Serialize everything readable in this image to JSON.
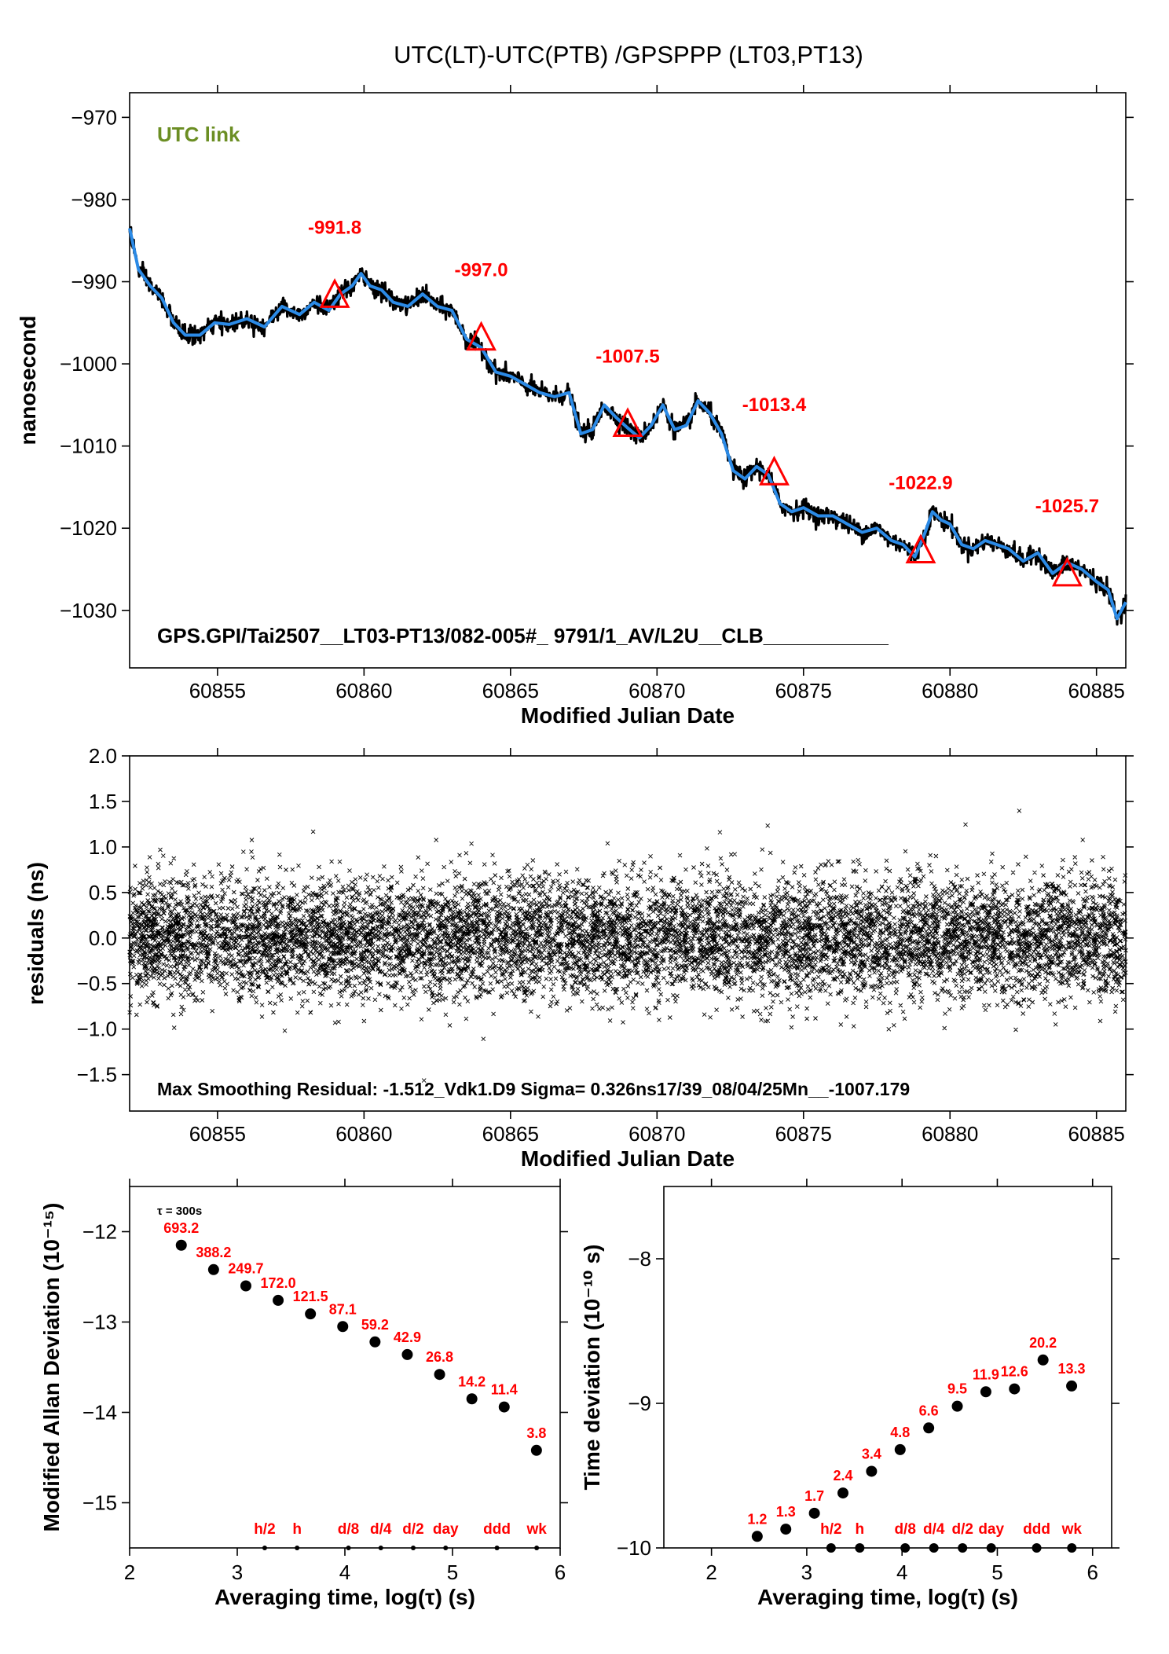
{
  "title": "UTC(LT)-UTC(PTB)  /GPSPPP  (LT03,PT13)",
  "colors": {
    "smooth_line": "#2b8ae6",
    "raw_points": "#000000",
    "annotation": "#ff0000",
    "utc_link": "#6b8e23"
  },
  "chart_data": [
    {
      "id": "top",
      "type": "line",
      "xlabel": "Modified Julian Date",
      "ylabel": "nanosecond",
      "xlim": [
        60852,
        60886
      ],
      "ylim": [
        -1037,
        -967
      ],
      "xticks": [
        60855,
        60860,
        60865,
        60870,
        60875,
        60880,
        60885
      ],
      "yticks": [
        -970,
        -980,
        -990,
        -1000,
        -1010,
        -1020,
        -1030
      ],
      "legend_text": "UTC link",
      "footer_text": "GPS.GPI/Tai2507__LT03-PT13/082-005#_  9791/1_AV/L2U__CLB___________",
      "series": [
        {
          "x": [
            60852,
            60852.3,
            60852.7,
            60853.1,
            60853.5,
            60853.9,
            60854.4,
            60854.9,
            60855.4,
            60856,
            60856.6,
            60857.2,
            60857.8,
            60858.3,
            60858.8,
            60859.2,
            60859.6,
            60859.9,
            60860.2,
            60860.6,
            60861,
            60861.5,
            60862,
            60862.5,
            60863,
            60863.5,
            60864,
            60864.5,
            60865,
            60865.5,
            60866,
            60866.5,
            60867,
            60867.4,
            60867.8,
            60868.2,
            60868.6,
            60869,
            60869.4,
            60869.8,
            60870.2,
            60870.6,
            60871,
            60871.4,
            60871.8,
            60872.2,
            60872.6,
            60873,
            60873.4,
            60873.8,
            60874.2,
            60874.6,
            60875,
            60875.5,
            60876,
            60876.5,
            60877,
            60877.5,
            60878,
            60878.4,
            60878.8,
            60879.1,
            60879.4,
            60879.7,
            60880,
            60880.4,
            60880.8,
            60881.2,
            60881.6,
            60882,
            60882.5,
            60883,
            60883.5,
            60884,
            60884.5,
            60885,
            60885.4,
            60885.7,
            60886
          ],
          "values": [
            -983.5,
            -988.5,
            -990.5,
            -992,
            -995,
            -996.5,
            -996.5,
            -995,
            -995.2,
            -994.5,
            -995.5,
            -993,
            -994,
            -992.5,
            -993.5,
            -991.5,
            -990.5,
            -989,
            -990.5,
            -991,
            -992.5,
            -993,
            -991.5,
            -993,
            -993.5,
            -997,
            -998,
            -1001,
            -1001.5,
            -1002.5,
            -1003.5,
            -1004,
            -1003.5,
            -1008.5,
            -1008,
            -1005,
            -1006.5,
            -1007.8,
            -1009,
            -1007.5,
            -1005,
            -1008,
            -1007.5,
            -1004.5,
            -1006,
            -1008.5,
            -1013,
            -1014,
            -1012.5,
            -1013.5,
            -1017,
            -1018,
            -1017.5,
            -1018.5,
            -1018.5,
            -1019.5,
            -1020.5,
            -1020,
            -1021.5,
            -1022,
            -1023.5,
            -1021,
            -1018,
            -1019,
            -1019.5,
            -1022,
            -1022.5,
            -1021.5,
            -1022,
            -1022.5,
            -1024,
            -1023,
            -1025.5,
            -1024.2,
            -1025,
            -1026.5,
            -1027.5,
            -1031,
            -1029
          ]
        }
      ],
      "annotations": [
        {
          "x": 60859,
          "y": -991.8,
          "label": "-991.8"
        },
        {
          "x": 60864,
          "y": -997.0,
          "label": "-997.0"
        },
        {
          "x": 60869,
          "y": -1007.5,
          "label": "-1007.5"
        },
        {
          "x": 60874,
          "y": -1013.4,
          "label": "-1013.4"
        },
        {
          "x": 60879,
          "y": -1022.9,
          "label": "-1022.9"
        },
        {
          "x": 60884,
          "y": -1025.7,
          "label": "-1025.7"
        }
      ]
    },
    {
      "id": "residuals",
      "type": "scatter",
      "xlabel": "Modified Julian Date",
      "ylabel": "residuals (ns)",
      "xlim": [
        60852,
        60886
      ],
      "ylim": [
        -1.9,
        2.0
      ],
      "xticks": [
        60855,
        60860,
        60865,
        60870,
        60875,
        60880,
        60885
      ],
      "yticks": [
        2.0,
        1.5,
        1.0,
        0.5,
        0.0,
        -0.5,
        -1.0,
        -1.5
      ],
      "ytick_labels": [
        "2.0",
        "1.5",
        "1.0",
        "0.5",
        "0.0",
        "−0.5",
        "−1.0",
        "−1.5"
      ],
      "sigma_ns": 0.326,
      "footer_text": "Max Smoothing Residual: -1.512_Vdk1.D9  Sigma= 0.326ns17/39_08/04/25Mn__-1007.179"
    },
    {
      "id": "mdev",
      "type": "scatter",
      "xlabel": "Averaging time, log(τ) (s)",
      "ylabel": "Modified Allan Deviation (10⁻¹⁵)",
      "xlim": [
        2,
        6
      ],
      "ylim": [
        -15.5,
        -11.5
      ],
      "xticks": [
        2,
        3,
        4,
        5,
        6
      ],
      "yticks": [
        -12,
        -13,
        -14,
        -15
      ],
      "tau_note": "τ = 300s",
      "points": [
        {
          "x": 2.48,
          "y": -12.15,
          "label": "693.2"
        },
        {
          "x": 2.78,
          "y": -12.42,
          "label": "388.2"
        },
        {
          "x": 3.08,
          "y": -12.6,
          "label": "249.7"
        },
        {
          "x": 3.38,
          "y": -12.76,
          "label": "172.0"
        },
        {
          "x": 3.68,
          "y": -12.91,
          "label": "121.5"
        },
        {
          "x": 3.98,
          "y": -13.05,
          "label": "87.1"
        },
        {
          "x": 4.28,
          "y": -13.22,
          "label": "59.2"
        },
        {
          "x": 4.58,
          "y": -13.36,
          "label": "42.9"
        },
        {
          "x": 4.88,
          "y": -13.58,
          "label": "26.8"
        },
        {
          "x": 5.18,
          "y": -13.85,
          "label": "14.2"
        },
        {
          "x": 5.48,
          "y": -13.94,
          "label": "11.4"
        },
        {
          "x": 5.78,
          "y": -14.42,
          "label": "3.8"
        }
      ],
      "markers": [
        {
          "x": 3.255,
          "label": "h/2"
        },
        {
          "x": 3.556,
          "label": "h"
        },
        {
          "x": 4.033,
          "label": "d/8"
        },
        {
          "x": 4.334,
          "label": "d/4"
        },
        {
          "x": 4.635,
          "label": "d/2"
        },
        {
          "x": 4.936,
          "label": "day"
        },
        {
          "x": 5.413,
          "label": "ddd"
        },
        {
          "x": 5.782,
          "label": "wk"
        }
      ]
    },
    {
      "id": "tdev",
      "type": "scatter",
      "xlabel": "Averaging time, log(τ) (s)",
      "ylabel": "Time deviation (10⁻¹⁰ s)",
      "xlim": [
        1.5,
        6.2
      ],
      "ylim": [
        -10,
        -7.5
      ],
      "xticks": [
        2,
        3,
        4,
        5,
        6
      ],
      "yticks": [
        -8,
        -9,
        -10
      ],
      "points": [
        {
          "x": 2.48,
          "y": -9.92,
          "label": "1.2"
        },
        {
          "x": 2.78,
          "y": -9.87,
          "label": "1.3"
        },
        {
          "x": 3.08,
          "y": -9.76,
          "label": "1.7"
        },
        {
          "x": 3.38,
          "y": -9.62,
          "label": "2.4"
        },
        {
          "x": 3.68,
          "y": -9.47,
          "label": "3.4"
        },
        {
          "x": 3.98,
          "y": -9.32,
          "label": "4.8"
        },
        {
          "x": 4.28,
          "y": -9.17,
          "label": "6.6"
        },
        {
          "x": 4.58,
          "y": -9.02,
          "label": "9.5"
        },
        {
          "x": 4.88,
          "y": -8.92,
          "label": "11.9"
        },
        {
          "x": 5.18,
          "y": -8.9,
          "label": "12.6"
        },
        {
          "x": 5.48,
          "y": -8.7,
          "label": "20.2"
        },
        {
          "x": 5.78,
          "y": -8.88,
          "label": "13.3"
        }
      ],
      "markers": [
        {
          "x": 3.255,
          "label": "h/2"
        },
        {
          "x": 3.556,
          "label": "h"
        },
        {
          "x": 4.033,
          "label": "d/8"
        },
        {
          "x": 4.334,
          "label": "d/4"
        },
        {
          "x": 4.635,
          "label": "d/2"
        },
        {
          "x": 4.936,
          "label": "day"
        },
        {
          "x": 5.413,
          "label": "ddd"
        },
        {
          "x": 5.782,
          "label": "wk"
        }
      ]
    }
  ]
}
